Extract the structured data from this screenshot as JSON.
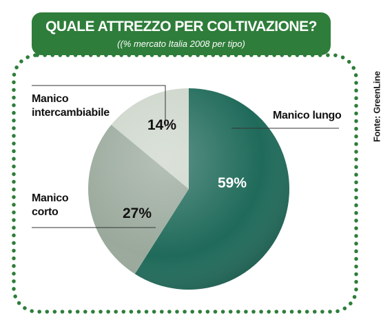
{
  "header": {
    "title": "QUALE ATTREZZO PER COLTIVAZIONE?",
    "subtitle": "((% mercato Italia 2008 per tipo)"
  },
  "source": "Fonte: GreenLine",
  "colors": {
    "frame_green": "#2e7d3a",
    "slice_lungo": "#1f6a5a",
    "slice_corto": "#9aa99c",
    "slice_intercambiabile": "#cdd6cb"
  },
  "chart_data": {
    "type": "pie",
    "title": "QUALE ATTREZZO PER COLTIVAZIONE?",
    "subtitle": "((% mercato Italia 2008 per tipo)",
    "slices": [
      {
        "label": "Manico lungo",
        "value": 59,
        "value_label": "59%",
        "color": "#1f6a5a"
      },
      {
        "label": "Manico corto",
        "value": 27,
        "value_label": "27%",
        "color": "#9aa99c"
      },
      {
        "label": "Manico intercambiabile",
        "value": 14,
        "value_label": "14%",
        "color": "#cdd6cb"
      }
    ]
  }
}
